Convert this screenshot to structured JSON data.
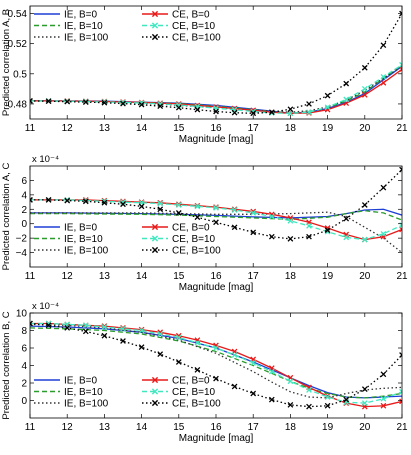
{
  "chart_data": [
    {
      "type": "line",
      "title": "",
      "xlabel": "Magnitude [mag]",
      "ylabel": "Predicted correlation A, B",
      "scale_factor": "",
      "xlim": [
        11,
        21
      ],
      "ylim": [
        0.47,
        0.545
      ],
      "xticks": [
        11,
        12,
        13,
        14,
        15,
        16,
        17,
        18,
        19,
        20,
        21
      ],
      "yticks": [
        0.48,
        0.5,
        0.52,
        0.54
      ],
      "ytick_labels": [
        "0.48",
        "0.5",
        "0.52",
        "0.54"
      ],
      "grid": false,
      "legend_position": "top-left",
      "series": [
        {
          "name": "IE, B=0",
          "color": "#1f3fd6",
          "style": "solid",
          "x": [
            11,
            12,
            13,
            14,
            15,
            16,
            17,
            17.5,
            18,
            18.5,
            19,
            19.5,
            20,
            20.5,
            21
          ],
          "y": [
            0.482,
            0.482,
            0.4818,
            0.4812,
            0.4805,
            0.479,
            0.4765,
            0.4752,
            0.4738,
            0.4745,
            0.477,
            0.481,
            0.487,
            0.496,
            0.505
          ]
        },
        {
          "name": "IE, B=10",
          "color": "#2a9d2a",
          "style": "dashed",
          "x": [
            11,
            12,
            13,
            14,
            15,
            16,
            17,
            17.5,
            18,
            18.5,
            19,
            19.5,
            20,
            20.5,
            21
          ],
          "y": [
            0.482,
            0.4818,
            0.4815,
            0.481,
            0.4802,
            0.4785,
            0.4762,
            0.475,
            0.4738,
            0.4748,
            0.4775,
            0.482,
            0.488,
            0.497,
            0.506
          ]
        },
        {
          "name": "IE, B=100",
          "color": "#333333",
          "style": "dotted",
          "x": [
            11,
            12,
            13,
            14,
            15,
            16,
            17,
            17.5,
            18,
            18.5,
            19,
            19.5,
            20,
            20.5,
            21
          ],
          "y": [
            0.482,
            0.4818,
            0.4812,
            0.4805,
            0.479,
            0.4775,
            0.476,
            0.4752,
            0.4745,
            0.4755,
            0.478,
            0.4825,
            0.489,
            0.497,
            0.505
          ]
        },
        {
          "name": "CE, B=0",
          "color": "#e81a1a",
          "style": "solid-x",
          "x": [
            11,
            11.5,
            12,
            12.5,
            13,
            13.5,
            14,
            14.5,
            15,
            15.5,
            16,
            16.5,
            17,
            17.5,
            18,
            18.5,
            19,
            19.5,
            20,
            20.5,
            21
          ],
          "y": [
            0.482,
            0.482,
            0.482,
            0.4818,
            0.4816,
            0.4813,
            0.481,
            0.4805,
            0.48,
            0.479,
            0.478,
            0.477,
            0.4758,
            0.4745,
            0.4738,
            0.474,
            0.4762,
            0.4805,
            0.486,
            0.494,
            0.503
          ]
        },
        {
          "name": "CE, B=10",
          "color": "#40e8c0",
          "style": "dashed-x",
          "x": [
            11,
            11.5,
            12,
            12.5,
            13,
            13.5,
            14,
            14.5,
            15,
            15.5,
            16,
            16.5,
            17,
            17.5,
            18,
            18.5,
            19,
            19.5,
            20,
            20.5,
            21
          ],
          "y": [
            0.482,
            0.482,
            0.4818,
            0.4816,
            0.4813,
            0.481,
            0.4806,
            0.48,
            0.4793,
            0.4783,
            0.4772,
            0.4762,
            0.475,
            0.474,
            0.4738,
            0.4745,
            0.4778,
            0.483,
            0.49,
            0.498,
            0.506
          ]
        },
        {
          "name": "CE, B=100",
          "color": "#000000",
          "style": "dotted-x",
          "x": [
            11,
            11.5,
            12,
            12.5,
            13,
            13.5,
            14,
            14.5,
            15,
            15.5,
            16,
            16.5,
            17,
            17.5,
            18,
            18.5,
            19,
            19.5,
            20,
            20.5,
            21
          ],
          "y": [
            0.482,
            0.4818,
            0.4815,
            0.4812,
            0.4808,
            0.4802,
            0.4795,
            0.4785,
            0.4775,
            0.4762,
            0.475,
            0.4742,
            0.4738,
            0.4745,
            0.4765,
            0.48,
            0.4855,
            0.4935,
            0.504,
            0.519,
            0.54
          ]
        }
      ]
    },
    {
      "type": "line",
      "title": "",
      "xlabel": "Magnitude [mag]",
      "ylabel": "Predicted correlation A, C",
      "scale_factor": "x 10⁻⁴",
      "xlim": [
        11,
        21
      ],
      "ylim": [
        -6,
        8
      ],
      "xticks": [
        11,
        12,
        13,
        14,
        15,
        16,
        17,
        18,
        19,
        20,
        21
      ],
      "yticks": [
        -4,
        -2,
        0,
        2,
        4,
        6
      ],
      "ytick_labels": [
        "−4",
        "−2",
        "0",
        "2",
        "4",
        "6"
      ],
      "grid": false,
      "legend_position": "bottom-left",
      "series": [
        {
          "name": "IE, B=0",
          "color": "#1f3fd6",
          "style": "solid",
          "x": [
            11,
            12,
            13,
            14,
            15,
            16,
            17,
            18,
            19,
            19.5,
            20,
            20.5,
            21
          ],
          "y": [
            1.5,
            1.5,
            1.45,
            1.4,
            1.3,
            1.15,
            0.95,
            0.8,
            1.0,
            1.4,
            1.9,
            2.0,
            1.2
          ]
        },
        {
          "name": "IE, B=10",
          "color": "#2a9d2a",
          "style": "dashed",
          "x": [
            11,
            12,
            13,
            14,
            15,
            16,
            17,
            18,
            19,
            19.5,
            20,
            20.5,
            21
          ],
          "y": [
            1.4,
            1.4,
            1.35,
            1.3,
            1.2,
            1.0,
            0.8,
            0.6,
            0.9,
            1.4,
            1.8,
            1.5,
            0.5
          ]
        },
        {
          "name": "IE, B=100",
          "color": "#333333",
          "style": "dotted",
          "x": [
            11,
            12,
            13,
            14,
            15,
            16,
            17,
            18,
            18.5,
            19,
            19.5,
            20,
            20.5,
            21
          ],
          "y": [
            1.5,
            1.5,
            1.5,
            1.5,
            1.4,
            1.3,
            1.3,
            1.4,
            1.5,
            1.6,
            1.0,
            -0.5,
            -2.0,
            -4.0
          ]
        },
        {
          "name": "CE, B=0",
          "color": "#e81a1a",
          "style": "solid-x",
          "x": [
            11,
            11.5,
            12,
            12.5,
            13,
            13.5,
            14,
            14.5,
            15,
            15.5,
            16,
            16.5,
            17,
            17.5,
            18,
            18.5,
            19,
            19.5,
            20,
            20.5,
            21
          ],
          "y": [
            3.3,
            3.3,
            3.3,
            3.3,
            3.2,
            3.1,
            3.0,
            2.9,
            2.7,
            2.5,
            2.3,
            2.0,
            1.7,
            1.3,
            0.8,
            0.2,
            -0.6,
            -1.5,
            -2.2,
            -1.8,
            -0.8
          ]
        },
        {
          "name": "CE, B=10",
          "color": "#40e8c0",
          "style": "dashed-x",
          "x": [
            11,
            11.5,
            12,
            12.5,
            13,
            13.5,
            14,
            14.5,
            15,
            15.5,
            16,
            16.5,
            17,
            17.5,
            18,
            18.5,
            19,
            19.5,
            20,
            20.5,
            21
          ],
          "y": [
            3.3,
            3.3,
            3.3,
            3.2,
            3.1,
            3.0,
            2.9,
            2.8,
            2.6,
            2.4,
            2.2,
            1.9,
            1.5,
            1.0,
            0.4,
            -0.3,
            -1.1,
            -1.9,
            -2.2,
            -1.4,
            -0.2
          ]
        },
        {
          "name": "CE, B=100",
          "color": "#000000",
          "style": "dotted-x",
          "x": [
            11,
            11.5,
            12,
            12.5,
            13,
            13.5,
            14,
            14.5,
            15,
            15.5,
            16,
            16.5,
            17,
            17.5,
            18,
            18.5,
            19,
            19.5,
            20,
            20.5,
            21
          ],
          "y": [
            3.3,
            3.3,
            3.2,
            3.1,
            2.9,
            2.7,
            2.4,
            2.0,
            1.5,
            0.9,
            0.2,
            -0.5,
            -1.2,
            -1.8,
            -2.1,
            -1.8,
            -0.9,
            0.7,
            2.6,
            5.0,
            7.5
          ]
        }
      ]
    },
    {
      "type": "line",
      "title": "",
      "xlabel": "Magnitude [mag]",
      "ylabel": "Predicted correlation B, C",
      "scale_factor": "x 10⁻⁴",
      "xlim": [
        11,
        21
      ],
      "ylim": [
        -2,
        10
      ],
      "xticks": [
        11,
        12,
        13,
        14,
        15,
        16,
        17,
        18,
        19,
        20,
        21
      ],
      "yticks": [
        0,
        2,
        4,
        6,
        8,
        10
      ],
      "ytick_labels": [
        "0",
        "2",
        "4",
        "6",
        "8",
        "10"
      ],
      "grid": false,
      "legend_position": "bottom-left",
      "series": [
        {
          "name": "IE, B=0",
          "color": "#1f3fd6",
          "style": "solid",
          "x": [
            11,
            12,
            13,
            14,
            15,
            16,
            17,
            18,
            18.5,
            19,
            19.5,
            20,
            20.5,
            21
          ],
          "y": [
            8.5,
            8.4,
            8.2,
            7.8,
            7.1,
            6.0,
            4.4,
            2.6,
            1.7,
            0.9,
            0.4,
            0.3,
            0.4,
            0.5
          ]
        },
        {
          "name": "IE, B=10",
          "color": "#2a9d2a",
          "style": "dashed",
          "x": [
            11,
            12,
            13,
            14,
            15,
            16,
            17,
            18,
            18.5,
            19,
            19.5,
            20,
            20.5,
            21
          ],
          "y": [
            8.3,
            8.2,
            8.0,
            7.6,
            6.8,
            5.6,
            4.0,
            2.2,
            1.4,
            0.8,
            0.4,
            0.3,
            0.5,
            0.8
          ]
        },
        {
          "name": "IE, B=100",
          "color": "#333333",
          "style": "dotted",
          "x": [
            11,
            12,
            13,
            14,
            15,
            16,
            17,
            17.5,
            18,
            18.5,
            19,
            19.5,
            20,
            20.5,
            21
          ],
          "y": [
            8.7,
            8.6,
            8.3,
            7.8,
            6.9,
            5.4,
            3.3,
            2.1,
            1.0,
            0.4,
            0.3,
            0.8,
            1.2,
            1.4,
            1.5
          ]
        },
        {
          "name": "CE, B=0",
          "color": "#e81a1a",
          "style": "solid-x",
          "x": [
            11,
            11.5,
            12,
            12.5,
            13,
            13.5,
            14,
            14.5,
            15,
            15.5,
            16,
            16.5,
            17,
            17.5,
            18,
            18.5,
            19,
            19.5,
            20,
            20.5,
            21
          ],
          "y": [
            8.8,
            8.8,
            8.7,
            8.6,
            8.5,
            8.3,
            8.1,
            7.8,
            7.4,
            6.9,
            6.3,
            5.6,
            4.7,
            3.7,
            2.6,
            1.5,
            0.5,
            -0.3,
            -0.7,
            -0.6,
            -0.1
          ]
        },
        {
          "name": "CE, B=10",
          "color": "#40e8c0",
          "style": "dashed-x",
          "x": [
            11,
            11.5,
            12,
            12.5,
            13,
            13.5,
            14,
            14.5,
            15,
            15.5,
            16,
            16.5,
            17,
            17.5,
            18,
            18.5,
            19,
            19.5,
            20,
            20.5,
            21
          ],
          "y": [
            8.8,
            8.8,
            8.7,
            8.6,
            8.4,
            8.2,
            8.0,
            7.6,
            7.2,
            6.6,
            6.0,
            5.2,
            4.3,
            3.3,
            2.2,
            1.2,
            0.4,
            -0.2,
            -0.3,
            0.2,
            1.0
          ]
        },
        {
          "name": "CE, B=100",
          "color": "#000000",
          "style": "dotted-x",
          "x": [
            11,
            11.5,
            12,
            12.5,
            13,
            13.5,
            14,
            14.5,
            15,
            15.5,
            16,
            16.5,
            17,
            17.5,
            18,
            18.5,
            19,
            19.5,
            20,
            20.5,
            21
          ],
          "y": [
            8.8,
            8.6,
            8.3,
            7.9,
            7.4,
            6.8,
            6.1,
            5.3,
            4.4,
            3.5,
            2.5,
            1.6,
            0.8,
            0.1,
            -0.5,
            -0.7,
            -0.6,
            0.1,
            1.3,
            3.0,
            5.2
          ]
        }
      ]
    }
  ]
}
